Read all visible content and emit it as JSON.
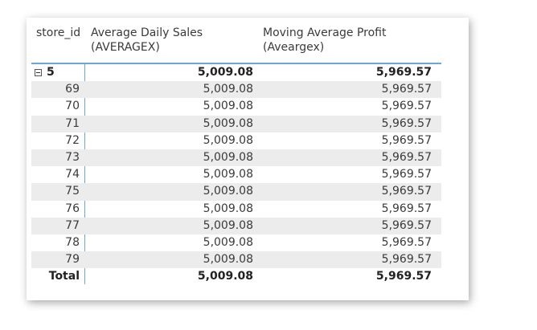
{
  "table": {
    "headers": {
      "store": "store_id",
      "sales": "Average Daily Sales\n(AVERAGEX)",
      "profit": "Moving Average Profit\n(Aveargex)"
    },
    "group": {
      "store": "5",
      "sales": "5,009.08",
      "profit": "5,969.57"
    },
    "rows": [
      {
        "store": "69",
        "sales": "5,009.08",
        "profit": "5,969.57"
      },
      {
        "store": "70",
        "sales": "5,009.08",
        "profit": "5,969.57"
      },
      {
        "store": "71",
        "sales": "5,009.08",
        "profit": "5,969.57"
      },
      {
        "store": "72",
        "sales": "5,009.08",
        "profit": "5,969.57"
      },
      {
        "store": "73",
        "sales": "5,009.08",
        "profit": "5,969.57"
      },
      {
        "store": "74",
        "sales": "5,009.08",
        "profit": "5,969.57"
      },
      {
        "store": "75",
        "sales": "5,009.08",
        "profit": "5,969.57"
      },
      {
        "store": "76",
        "sales": "5,009.08",
        "profit": "5,969.57"
      },
      {
        "store": "77",
        "sales": "5,009.08",
        "profit": "5,969.57"
      },
      {
        "store": "78",
        "sales": "5,009.08",
        "profit": "5,969.57"
      },
      {
        "store": "79",
        "sales": "5,009.08",
        "profit": "5,969.57"
      }
    ],
    "total": {
      "label": "Total",
      "sales": "5,009.08",
      "profit": "5,969.57"
    }
  },
  "colors": {
    "accent_line": "#6aa6dc",
    "row_shade": "#ececec"
  }
}
